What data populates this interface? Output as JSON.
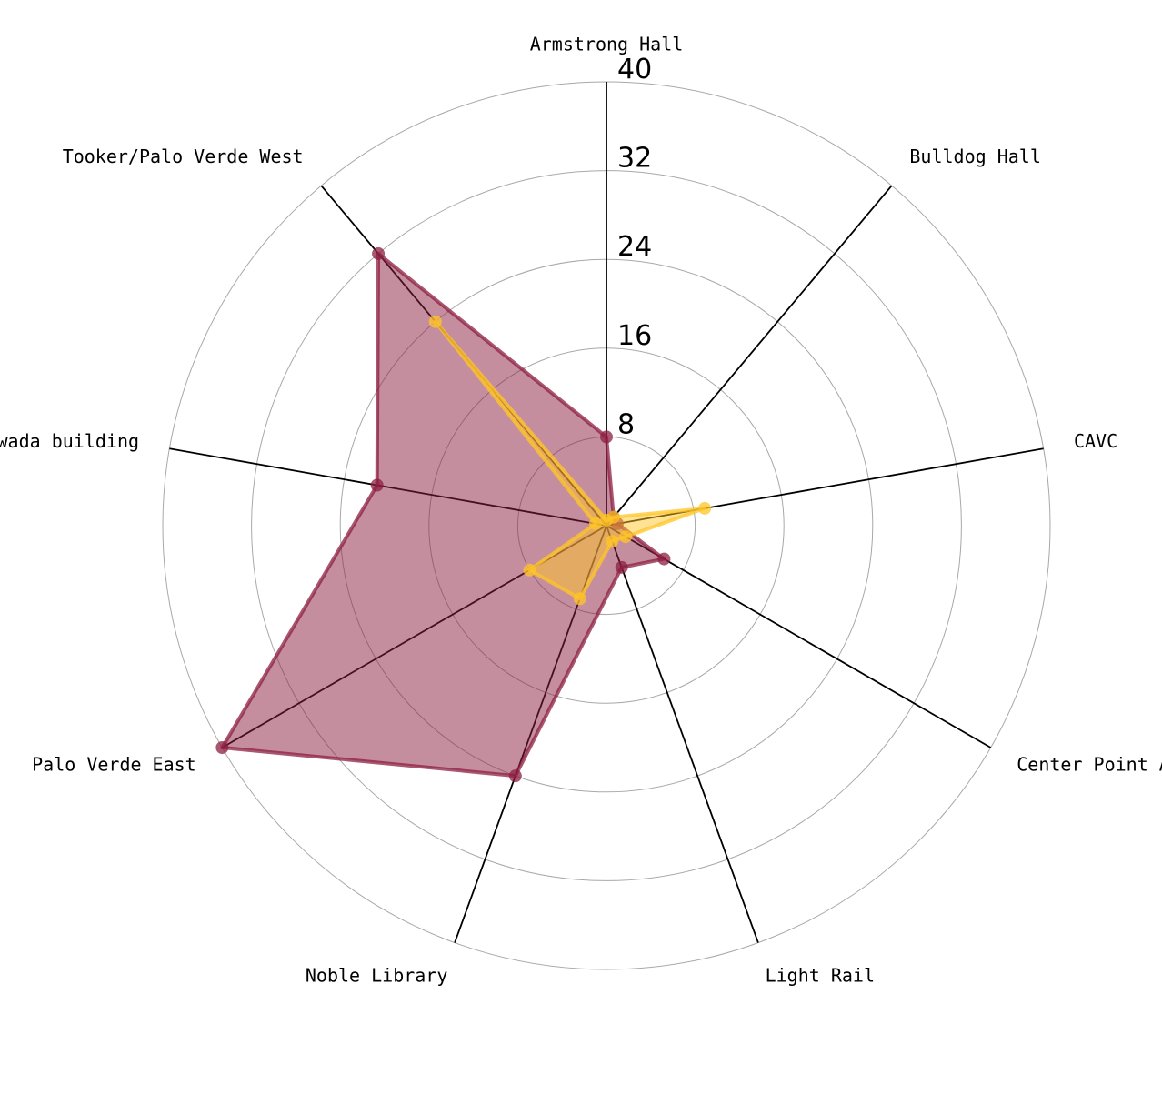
{
  "chart_data": {
    "type": "radar",
    "categories": [
      "Armstrong Hall",
      "Bulldog Hall",
      "CAVC",
      "Center Point A",
      "Light Rail",
      "Noble Library",
      "Palo Verde East",
      "Schwada building",
      "Tooker/Palo Verde West"
    ],
    "rlim": [
      0,
      40
    ],
    "rticks": [
      "8",
      "16",
      "24",
      "32",
      "40"
    ],
    "grid": true,
    "series": [
      {
        "values": [
          8,
          1,
          1,
          6,
          4,
          24,
          40,
          21,
          32
        ],
        "color": "#8c1d40"
      },
      {
        "values": [
          0.5,
          1,
          9,
          2,
          1.5,
          7,
          8,
          1,
          24
        ],
        "color": "#ffc627"
      }
    ]
  }
}
